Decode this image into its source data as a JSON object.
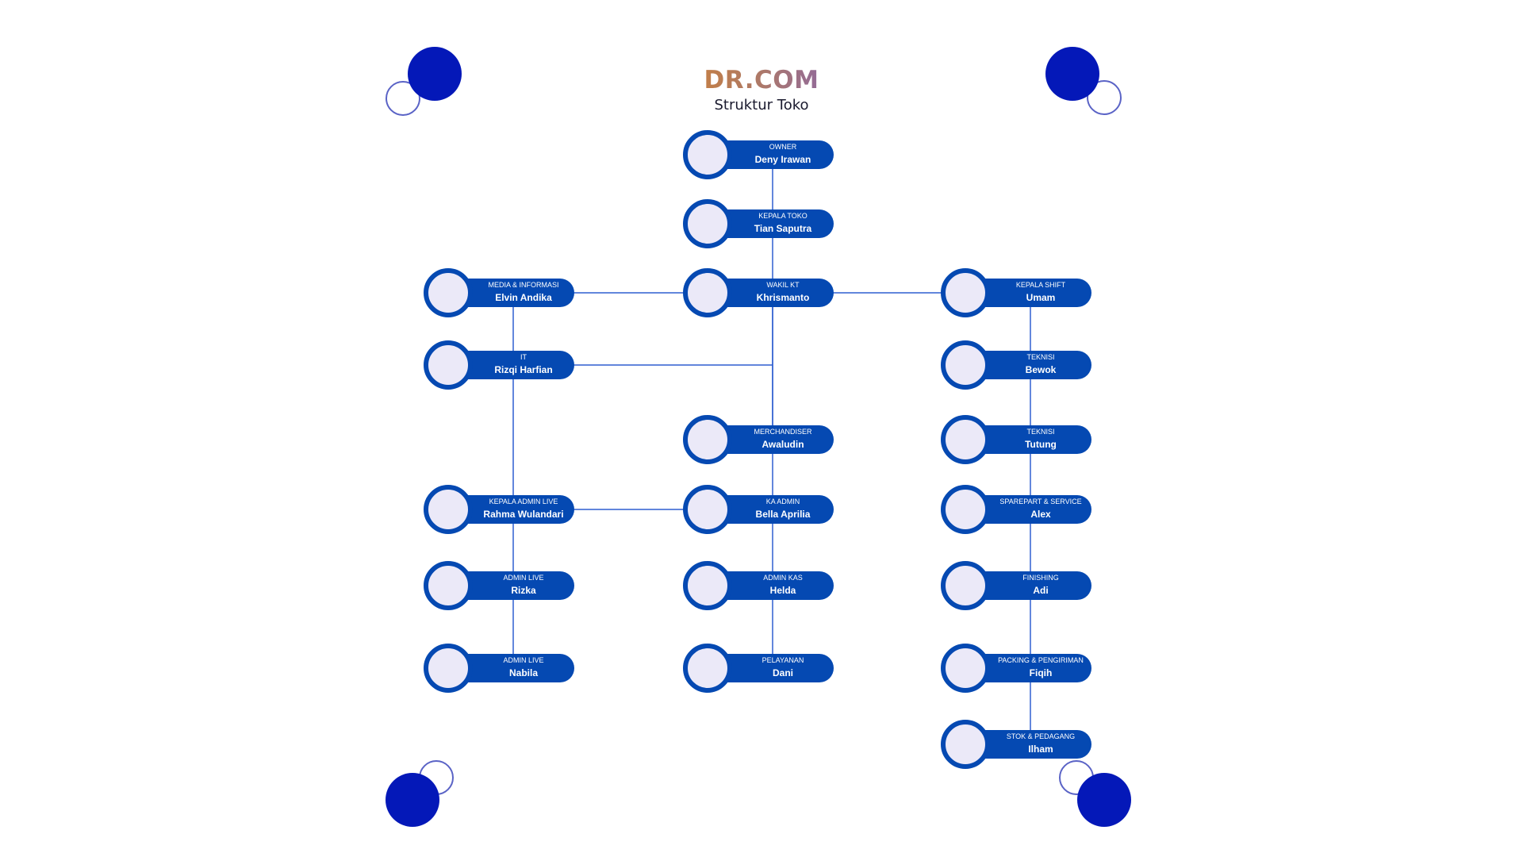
{
  "header": {
    "brand": "DR.COM",
    "subtitle": "Struktur Toko"
  },
  "colors": {
    "node": "#0549b2",
    "avatar": "#ebe9f8",
    "line": "#2f5fd0",
    "decor": "#0418b8"
  },
  "nodes": [
    {
      "id": "owner",
      "role": "OWNER",
      "name": "Deny Irawan"
    },
    {
      "id": "kepala-toko",
      "role": "KEPALA TOKO",
      "name": "Tian Saputra"
    },
    {
      "id": "wakil-kt",
      "role": "WAKIL KT",
      "name": "Khrismanto"
    },
    {
      "id": "media",
      "role": "MEDIA & INFORMASI",
      "name": "Elvin Andika"
    },
    {
      "id": "it",
      "role": "IT",
      "name": "Rizqi Harfian"
    },
    {
      "id": "kepala-admin-live",
      "role": "KEPALA ADMIN LIVE",
      "name": "Rahma Wulandari"
    },
    {
      "id": "admin-live-1",
      "role": "ADMIN LIVE",
      "name": "Rizka"
    },
    {
      "id": "admin-live-2",
      "role": "ADMIN LIVE",
      "name": "Nabila"
    },
    {
      "id": "merchandiser",
      "role": "MERCHANDISER",
      "name": "Awaludin"
    },
    {
      "id": "ka-admin",
      "role": "KA ADMIN",
      "name": "Bella Aprilia"
    },
    {
      "id": "admin-kas",
      "role": "ADMIN KAS",
      "name": "Helda"
    },
    {
      "id": "pelayanan",
      "role": "PELAYANAN",
      "name": "Dani"
    },
    {
      "id": "kepala-shift",
      "role": "KEPALA SHIFT",
      "name": "Umam"
    },
    {
      "id": "teknisi-1",
      "role": "TEKNISI",
      "name": "Bewok"
    },
    {
      "id": "teknisi-2",
      "role": "TEKNISI",
      "name": "Tutung"
    },
    {
      "id": "sparepart",
      "role": "SPAREPART & SERVICE",
      "name": "Alex"
    },
    {
      "id": "finishing",
      "role": "FINISHING",
      "name": "Adi"
    },
    {
      "id": "packing",
      "role": "PACKING & PENGIRIMAN",
      "name": "Fiqih"
    },
    {
      "id": "stok",
      "role": "STOK & PEDAGANG",
      "name": "Ilham"
    }
  ],
  "edges": [
    [
      "owner",
      "kepala-toko"
    ],
    [
      "kepala-toko",
      "wakil-kt"
    ],
    [
      "wakil-kt",
      "media"
    ],
    [
      "wakil-kt",
      "it"
    ],
    [
      "wakil-kt",
      "kepala-shift"
    ],
    [
      "wakil-kt",
      "merchandiser"
    ],
    [
      "wakil-kt",
      "ka-admin"
    ],
    [
      "media",
      "it"
    ],
    [
      "it",
      "kepala-admin-live"
    ],
    [
      "kepala-admin-live",
      "admin-live-1"
    ],
    [
      "admin-live-1",
      "admin-live-2"
    ],
    [
      "kepala-admin-live",
      "ka-admin"
    ],
    [
      "ka-admin",
      "admin-kas"
    ],
    [
      "admin-kas",
      "pelayanan"
    ],
    [
      "kepala-shift",
      "teknisi-1"
    ],
    [
      "teknisi-1",
      "teknisi-2"
    ],
    [
      "teknisi-2",
      "sparepart"
    ],
    [
      "sparepart",
      "finishing"
    ],
    [
      "finishing",
      "packing"
    ],
    [
      "packing",
      "stok"
    ]
  ]
}
